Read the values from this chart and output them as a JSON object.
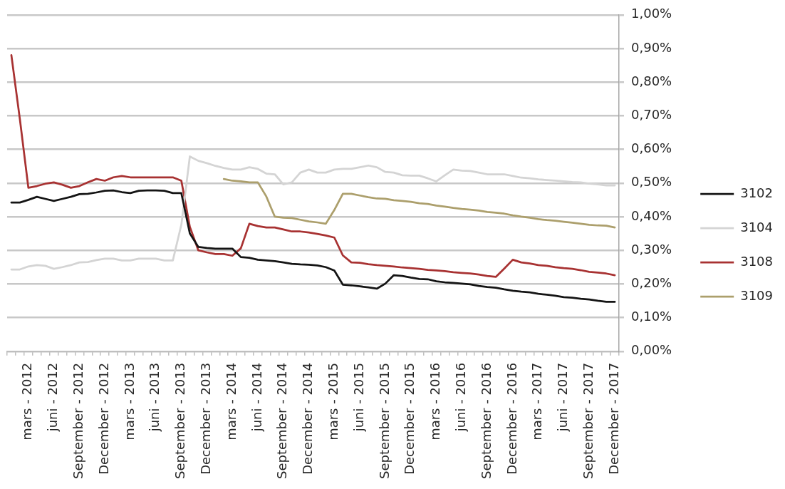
{
  "chart_data": {
    "type": "line",
    "categories": [
      null,
      null,
      "mars - 2012",
      null,
      null,
      "juni - 2012",
      null,
      null,
      "September - 2012",
      null,
      null,
      "December - 2012",
      null,
      null,
      "mars - 2013",
      null,
      null,
      "juni - 2013",
      null,
      null,
      "September - 2013",
      null,
      null,
      "December - 2013",
      null,
      null,
      "mars - 2014",
      null,
      null,
      "juni - 2014",
      null,
      null,
      "September - 2014",
      null,
      null,
      "December - 2014",
      null,
      null,
      "mars - 2015",
      null,
      null,
      "juni - 2015",
      null,
      null,
      "September - 2015",
      null,
      null,
      "December - 2015",
      null,
      null,
      "mars - 2016",
      null,
      null,
      "juni - 2016",
      null,
      null,
      "September - 2016",
      null,
      null,
      "December - 2016",
      null,
      null,
      "mars - 2017",
      null,
      null,
      "juni - 2017",
      null,
      null,
      "September - 2017",
      null,
      null,
      "December - 2017"
    ],
    "series": [
      {
        "name": "3102",
        "color": "#141414",
        "values": [
          0.442,
          0.442,
          0.45,
          0.459,
          0.453,
          0.447,
          0.453,
          0.459,
          0.467,
          0.468,
          0.472,
          0.477,
          0.478,
          0.473,
          0.47,
          0.477,
          0.478,
          0.478,
          0.477,
          0.47,
          0.47,
          0.35,
          0.31,
          0.307,
          0.305,
          0.305,
          0.305,
          0.28,
          0.278,
          0.272,
          0.27,
          0.268,
          0.264,
          0.26,
          0.258,
          0.257,
          0.255,
          0.25,
          0.24,
          0.198,
          0.196,
          0.193,
          0.19,
          0.186,
          0.201,
          0.226,
          0.224,
          0.219,
          0.215,
          0.214,
          0.208,
          0.205,
          0.203,
          0.201,
          0.199,
          0.194,
          0.191,
          0.189,
          0.184,
          0.18,
          0.177,
          0.175,
          0.171,
          0.168,
          0.165,
          0.161,
          0.159,
          0.156,
          0.154,
          0.15,
          0.147,
          0.147
        ]
      },
      {
        "name": "3104",
        "color": "#d4d4d4",
        "values": [
          0.243,
          0.243,
          0.252,
          0.256,
          0.254,
          0.245,
          0.25,
          0.256,
          0.264,
          0.265,
          0.271,
          0.275,
          0.275,
          0.27,
          0.27,
          0.275,
          0.275,
          0.275,
          0.27,
          0.27,
          0.376,
          0.579,
          0.566,
          0.559,
          0.551,
          0.545,
          0.54,
          0.54,
          0.547,
          0.542,
          0.528,
          0.526,
          0.496,
          0.502,
          0.531,
          0.54,
          0.531,
          0.531,
          0.54,
          0.542,
          0.542,
          0.547,
          0.552,
          0.547,
          0.533,
          0.531,
          0.523,
          0.522,
          0.522,
          0.514,
          0.505,
          0.523,
          0.54,
          0.537,
          0.536,
          0.531,
          0.526,
          0.526,
          0.526,
          0.521,
          0.516,
          0.514,
          0.511,
          0.509,
          0.507,
          0.505,
          0.503,
          0.502,
          0.498,
          0.496,
          0.493,
          0.493
        ]
      },
      {
        "name": "3108",
        "color": "#a83232",
        "values": [
          0.88,
          0.69,
          0.486,
          0.491,
          0.498,
          0.502,
          0.495,
          0.486,
          0.491,
          0.502,
          0.512,
          0.507,
          0.517,
          0.521,
          0.517,
          0.517,
          0.517,
          0.517,
          0.517,
          0.517,
          0.507,
          0.37,
          0.3,
          0.294,
          0.289,
          0.289,
          0.284,
          0.306,
          0.379,
          0.372,
          0.368,
          0.368,
          0.362,
          0.356,
          0.356,
          0.353,
          0.349,
          0.344,
          0.338,
          0.285,
          0.264,
          0.263,
          0.259,
          0.256,
          0.254,
          0.252,
          0.249,
          0.247,
          0.245,
          0.242,
          0.24,
          0.238,
          0.235,
          0.233,
          0.231,
          0.228,
          0.224,
          0.221,
          0.246,
          0.272,
          0.264,
          0.261,
          0.256,
          0.254,
          0.25,
          0.247,
          0.245,
          0.241,
          0.236,
          0.234,
          0.231,
          0.226
        ]
      },
      {
        "name": "3109",
        "color": "#ac9f6c",
        "values": [
          null,
          null,
          null,
          null,
          null,
          null,
          null,
          null,
          null,
          null,
          null,
          null,
          null,
          null,
          null,
          null,
          null,
          null,
          null,
          null,
          null,
          null,
          null,
          null,
          null,
          0.512,
          0.507,
          0.505,
          0.502,
          0.502,
          0.46,
          0.4,
          0.397,
          0.396,
          0.391,
          0.386,
          0.383,
          0.379,
          0.42,
          0.468,
          0.468,
          0.463,
          0.458,
          0.454,
          0.453,
          0.449,
          0.447,
          0.444,
          0.44,
          0.438,
          0.433,
          0.43,
          0.426,
          0.423,
          0.421,
          0.418,
          0.414,
          0.412,
          0.409,
          0.404,
          0.4,
          0.397,
          0.393,
          0.39,
          0.388,
          0.385,
          0.382,
          0.379,
          0.376,
          0.374,
          0.373,
          0.368
        ]
      }
    ],
    "ylim": [
      0,
      1
    ],
    "yticks": [
      {
        "value": 0,
        "label": "0,00%"
      },
      {
        "value": 0.1,
        "label": "0,10%"
      },
      {
        "value": 0.2,
        "label": "0,20%"
      },
      {
        "value": 0.3,
        "label": "0,30%"
      },
      {
        "value": 0.4,
        "label": "0,40%"
      },
      {
        "value": 0.5,
        "label": "0,50%"
      },
      {
        "value": 0.6,
        "label": "0,60%"
      },
      {
        "value": 0.7,
        "label": "0,70%"
      },
      {
        "value": 0.8,
        "label": "0,80%"
      },
      {
        "value": 0.9,
        "label": "0,90%"
      },
      {
        "value": 1,
        "label": "1,00%"
      }
    ],
    "grid": "y",
    "legend": "right",
    "marker": "none",
    "line_style": "solid"
  }
}
